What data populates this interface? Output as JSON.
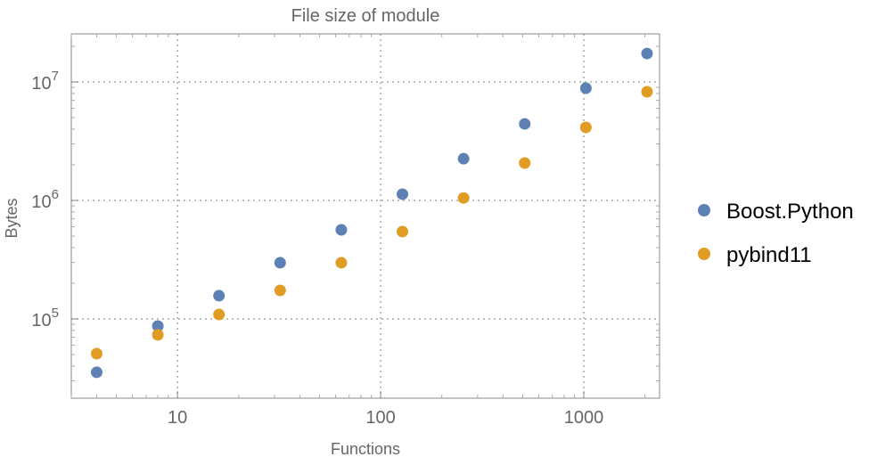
{
  "chart_data": {
    "type": "scatter",
    "title": "File size of module",
    "xlabel": "Functions",
    "ylabel": "Bytes",
    "xscale": "log",
    "yscale": "log",
    "xlim": [
      3,
      2360
    ],
    "ylim": [
      21400,
      25500000
    ],
    "grid": true,
    "legend": "right",
    "xticks": [
      {
        "value": 10,
        "label": "10"
      },
      {
        "value": 100,
        "label": "100"
      },
      {
        "value": 1000,
        "label": "1000"
      }
    ],
    "yticks": [
      {
        "value": 100000,
        "base": "10",
        "exp": "5"
      },
      {
        "value": 1000000,
        "base": "10",
        "exp": "6"
      },
      {
        "value": 10000000,
        "base": "10",
        "exp": "7"
      }
    ],
    "x": [
      4,
      8,
      16,
      32,
      64,
      128,
      256,
      512,
      1024,
      2048
    ],
    "series": [
      {
        "name": "Boost.Python",
        "color": "#5E81B5",
        "values": [
          35400,
          87000,
          157000,
          298000,
          565000,
          1130000,
          2250000,
          4430000,
          8860000,
          17400000
        ]
      },
      {
        "name": "pybind11",
        "color": "#E19C24",
        "values": [
          50900,
          73300,
          109000,
          174000,
          298000,
          546000,
          1050000,
          2070000,
          4140000,
          8270000
        ]
      }
    ]
  }
}
